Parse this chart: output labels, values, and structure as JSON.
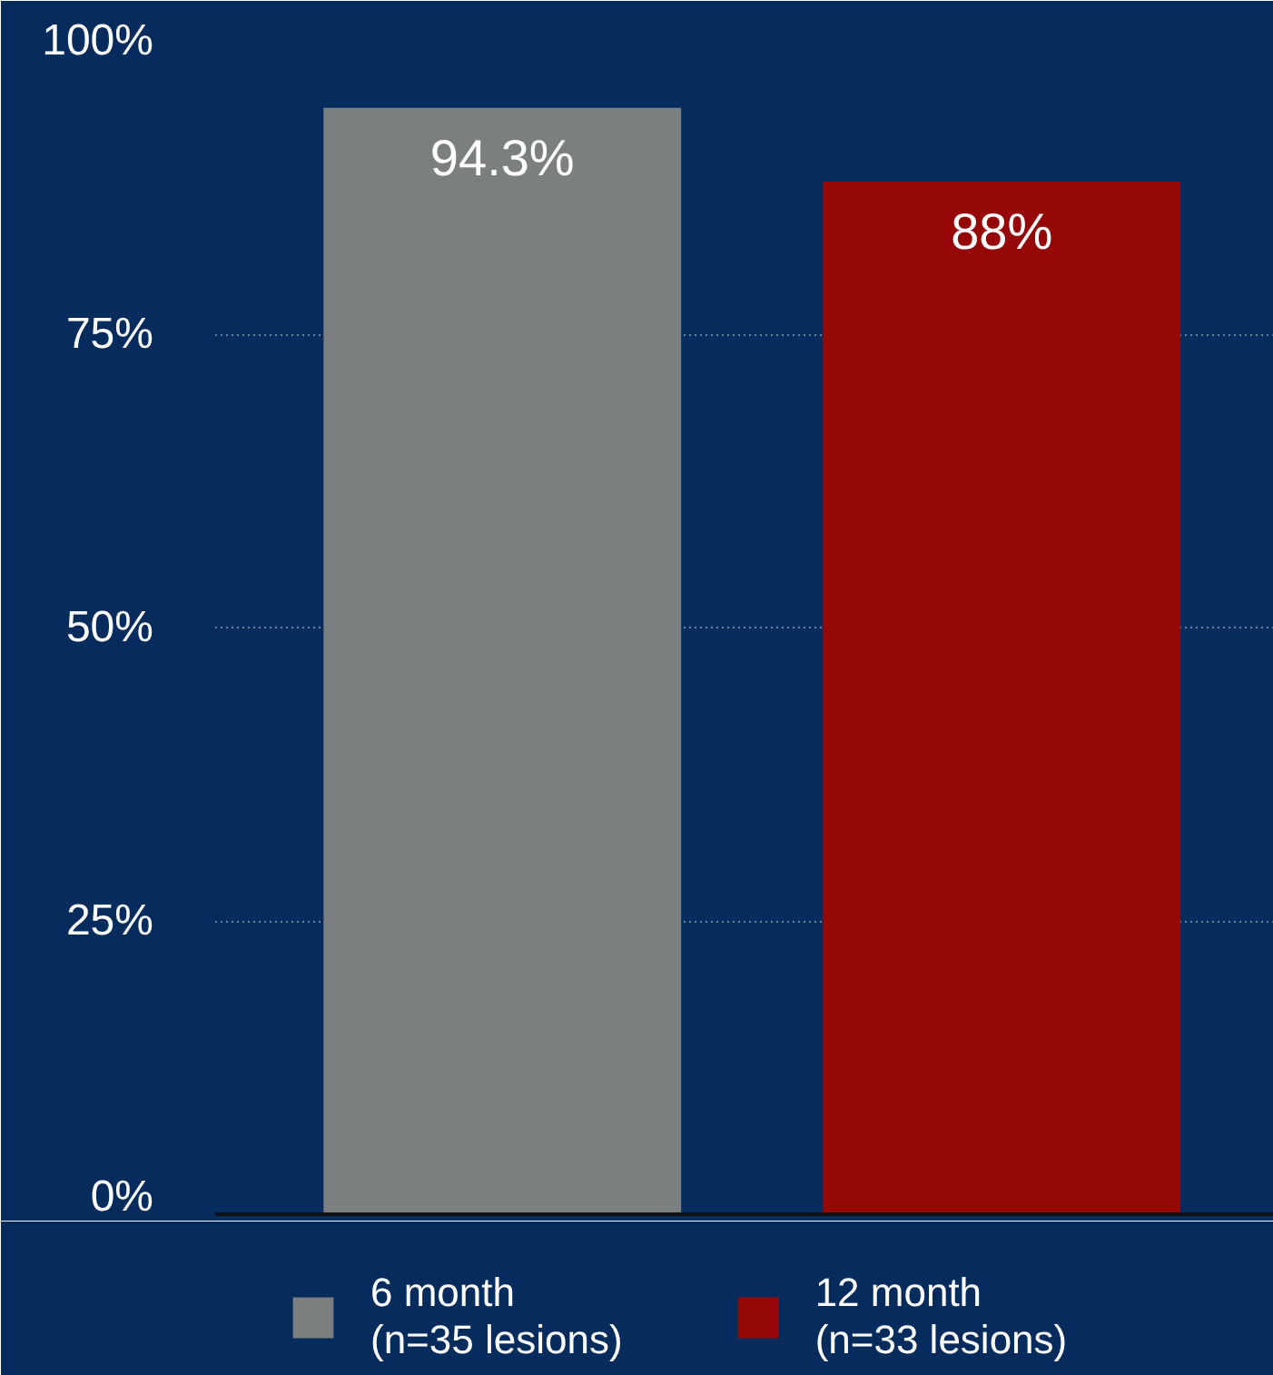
{
  "chart_data": {
    "type": "bar",
    "categories": [
      null,
      null
    ],
    "series": [
      {
        "name": "6 month\n(n=35 lesions)",
        "color": "#7b7f80",
        "values": [
          94.3,
          null
        ],
        "value_labels": [
          "94.3%",
          null
        ]
      },
      {
        "name": "12 month\n(n=33 lesions)",
        "color": "#960808",
        "values": [
          null,
          88
        ],
        "value_labels": [
          null,
          "88%"
        ]
      }
    ],
    "ylim": [
      0,
      100
    ],
    "yticks": [
      {
        "value": 0,
        "label": "0%"
      },
      {
        "value": 25,
        "label": "25%"
      },
      {
        "value": 50,
        "label": "50%"
      },
      {
        "value": 75,
        "label": "75%"
      },
      {
        "value": 100,
        "label": "100%"
      }
    ],
    "grid": "y",
    "legend": "bottom"
  }
}
